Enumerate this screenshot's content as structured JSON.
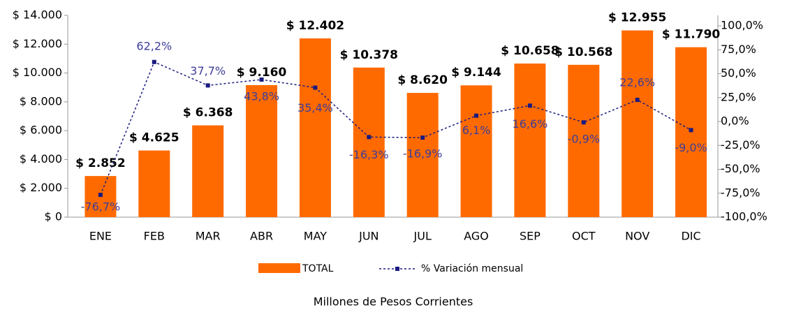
{
  "chart_data": {
    "type": "bar_line",
    "categories": [
      "ENE",
      "FEB",
      "MAR",
      "ABR",
      "MAY",
      "JUN",
      "JUL",
      "AGO",
      "SEP",
      "OCT",
      "NOV",
      "DIC"
    ],
    "series": [
      {
        "name": "TOTAL",
        "type": "bar",
        "color": "#ff6a00",
        "values": [
          2852,
          4625,
          6368,
          9160,
          12402,
          10378,
          8620,
          9144,
          10658,
          10568,
          12955,
          11790
        ],
        "value_labels": [
          "$ 2.852",
          "$ 4.625",
          "$ 6.368",
          "$ 9.160",
          "$ 12.402",
          "$ 10.378",
          "$ 8.620",
          "$ 9.144",
          "$ 10.658",
          "$ 10.568",
          "$ 12.955",
          "$ 11.790"
        ]
      },
      {
        "name": "% Variación mensual",
        "type": "line",
        "axis": "y2",
        "color": "#1a1a80",
        "values": [
          -76.7,
          62.2,
          37.7,
          43.8,
          35.4,
          -16.3,
          -16.9,
          6.1,
          16.6,
          -0.9,
          22.6,
          -9.0
        ],
        "value_labels": [
          "-76,7%",
          "62,2%",
          "37,7%",
          "43,8%",
          "35,4%",
          "-16,3%",
          "-16,9%",
          "6,1%",
          "16,6%",
          "-0,9%",
          "22,6%",
          "-9,0%"
        ]
      }
    ],
    "ylim": [
      0,
      14000
    ],
    "yticks": [
      {
        "value": 0,
        "label": "$ 0"
      },
      {
        "value": 2000,
        "label": "$ 2.000"
      },
      {
        "value": 4000,
        "label": "$ 4.000"
      },
      {
        "value": 6000,
        "label": "$ 6.000"
      },
      {
        "value": 8000,
        "label": "$ 8.000"
      },
      {
        "value": 10000,
        "label": "$ 10.000"
      },
      {
        "value": 12000,
        "label": "$ 12.000"
      },
      {
        "value": 14000,
        "label": "$ 14.000"
      }
    ],
    "y2lim": [
      -100,
      100
    ],
    "y2ticks": [
      {
        "value": -100,
        "label": "-100,0%"
      },
      {
        "value": -75,
        "label": "-75,0%"
      },
      {
        "value": -50,
        "label": "-50,0%"
      },
      {
        "value": -25,
        "label": "-25,0%"
      },
      {
        "value": 0,
        "label": "0,0%"
      },
      {
        "value": 25,
        "label": "25,0%"
      },
      {
        "value": 50,
        "label": "50,0%"
      },
      {
        "value": 75,
        "label": "75,0%"
      },
      {
        "value": 100,
        "label": "100,0%"
      }
    ],
    "caption": "Millones de Pesos Corrientes"
  }
}
